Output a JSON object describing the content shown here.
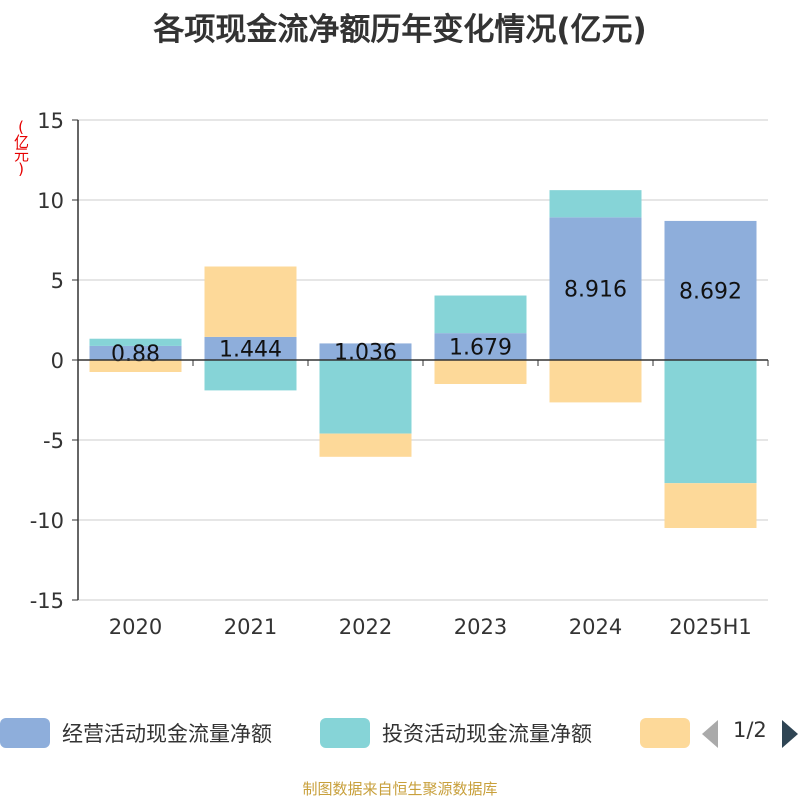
{
  "title": "各项现金流净额历年变化情况(亿元)",
  "unit_label": "(亿元)",
  "source": "制图数据来自恒生聚源数据库",
  "legend": {
    "items": [
      {
        "label": "经营活动现金流量净额",
        "color": "#8eaedb"
      },
      {
        "label": "投资活动现金流量净额",
        "color": "#86d4d7"
      },
      {
        "label": "",
        "color": "#fdd999"
      }
    ],
    "pager": "1/2"
  },
  "chart_data": {
    "type": "bar",
    "stacked": true,
    "categories": [
      "2020",
      "2021",
      "2022",
      "2023",
      "2024",
      "2025H1"
    ],
    "series": [
      {
        "name": "经营活动现金流量净额",
        "color": "#8eaedb",
        "values": [
          0.88,
          1.444,
          1.036,
          1.679,
          8.916,
          8.692
        ]
      },
      {
        "name": "投资活动现金流量净额",
        "color": "#86d4d7",
        "values": [
          0.45,
          -1.9,
          -4.6,
          2.35,
          1.7,
          -7.7
        ]
      },
      {
        "name": "",
        "color": "#fdd999",
        "values": [
          -0.75,
          4.4,
          -1.45,
          -1.5,
          -2.65,
          -2.8
        ]
      }
    ],
    "data_labels": [
      "0.88",
      "1.444",
      "1.036",
      "1.679",
      "8.916",
      "8.692"
    ],
    "ylim": [
      -15,
      15
    ],
    "yticks": [
      "15",
      "10",
      "5",
      "0",
      "-5",
      "-10",
      "-15"
    ],
    "grid": true
  }
}
